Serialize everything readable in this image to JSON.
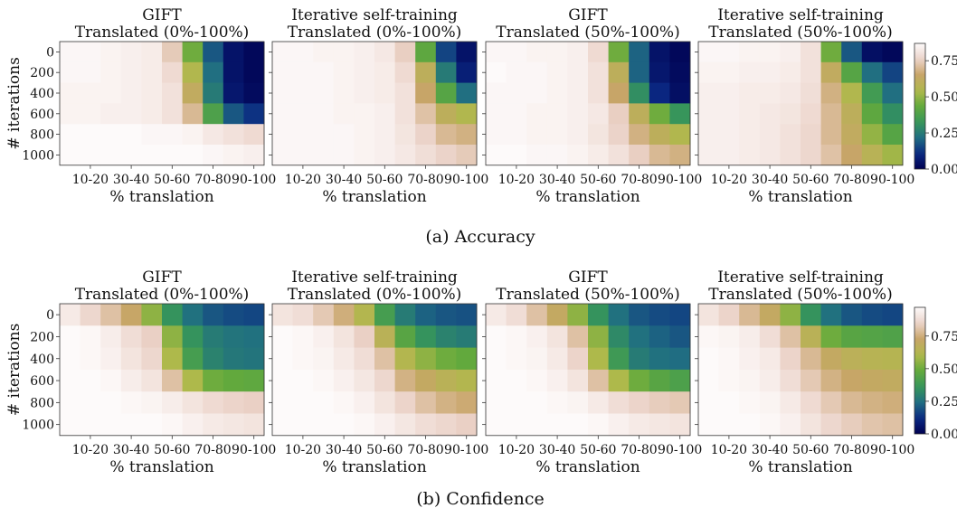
{
  "figure": {
    "rows": [
      {
        "caption": "(a) Accuracy",
        "colorbar_ticks": [
          "0.00",
          "0.25",
          "0.50",
          "0.75"
        ],
        "panels": [
          {
            "title_line1": "GIFT",
            "title_line2": "Translated (0%-100%)"
          },
          {
            "title_line1": "Iterative self-training",
            "title_line2": "Translated (0%-100%)"
          },
          {
            "title_line1": "GIFT",
            "title_line2": "Translated (50%-100%)"
          },
          {
            "title_line1": "Iterative self-training",
            "title_line2": "Translated (50%-100%)"
          }
        ]
      },
      {
        "caption": "(b) Confidence",
        "colorbar_ticks": [
          "0.00",
          "0.25",
          "0.50",
          "0.75"
        ],
        "panels": [
          {
            "title_line1": "GIFT",
            "title_line2": "Translated (0%-100%)"
          },
          {
            "title_line1": "Iterative self-training",
            "title_line2": "Translated (0%-100%)"
          },
          {
            "title_line1": "GIFT",
            "title_line2": "Translated (50%-100%)"
          },
          {
            "title_line1": "Iterative self-training",
            "title_line2": "Translated (50%-100%)"
          }
        ]
      }
    ],
    "xlabel": "% translation",
    "ylabel": "# iterations",
    "x_ticks": [
      "10-20",
      "30-40",
      "50-60",
      "70-80",
      "90-100"
    ],
    "y_ticks": [
      "0",
      "200",
      "400",
      "600",
      "800",
      "1000"
    ]
  },
  "chart_data": [
    {
      "type": "heatmap",
      "title": "GIFT Translated (0%-100%)",
      "xlabel": "% translation",
      "ylabel": "# iterations",
      "y": [
        0,
        200,
        400,
        600,
        800,
        1000
      ],
      "x_tick_labels": [
        "10-20",
        "30-40",
        "50-60",
        "70-80",
        "90-100"
      ],
      "zlim": [
        0,
        0.87
      ],
      "values": [
        [
          0.86,
          0.86,
          0.85,
          0.84,
          0.83,
          0.74,
          0.45,
          0.18,
          0.05,
          0.02
        ],
        [
          0.86,
          0.86,
          0.85,
          0.84,
          0.83,
          0.78,
          0.55,
          0.22,
          0.05,
          0.02
        ],
        [
          0.85,
          0.85,
          0.85,
          0.84,
          0.83,
          0.8,
          0.62,
          0.25,
          0.06,
          0.03
        ],
        [
          0.85,
          0.85,
          0.84,
          0.84,
          0.83,
          0.8,
          0.7,
          0.38,
          0.18,
          0.12
        ],
        [
          0.87,
          0.87,
          0.87,
          0.87,
          0.86,
          0.86,
          0.85,
          0.82,
          0.8,
          0.78
        ],
        [
          0.88,
          0.88,
          0.88,
          0.88,
          0.88,
          0.87,
          0.87,
          0.86,
          0.85,
          0.84
        ]
      ]
    },
    {
      "type": "heatmap",
      "title": "Iterative self-training Translated (0%-100%)",
      "xlabel": "% translation",
      "ylabel": "# iterations",
      "y": [
        0,
        200,
        400,
        600,
        800,
        1000
      ],
      "x_tick_labels": [
        "10-20",
        "30-40",
        "50-60",
        "70-80",
        "90-100"
      ],
      "zlim": [
        0,
        0.87
      ],
      "values": [
        [
          0.86,
          0.86,
          0.85,
          0.85,
          0.84,
          0.82,
          0.75,
          0.42,
          0.15,
          0.05
        ],
        [
          0.86,
          0.86,
          0.86,
          0.85,
          0.84,
          0.83,
          0.78,
          0.6,
          0.25,
          0.08
        ],
        [
          0.86,
          0.86,
          0.86,
          0.85,
          0.84,
          0.83,
          0.8,
          0.65,
          0.4,
          0.22
        ],
        [
          0.86,
          0.86,
          0.86,
          0.85,
          0.85,
          0.84,
          0.8,
          0.72,
          0.6,
          0.55
        ],
        [
          0.86,
          0.86,
          0.86,
          0.86,
          0.85,
          0.84,
          0.81,
          0.76,
          0.7,
          0.68
        ],
        [
          0.86,
          0.86,
          0.86,
          0.86,
          0.85,
          0.84,
          0.82,
          0.79,
          0.76,
          0.74
        ]
      ]
    },
    {
      "type": "heatmap",
      "title": "GIFT Translated (50%-100%)",
      "xlabel": "% translation",
      "ylabel": "# iterations",
      "y": [
        0,
        200,
        400,
        600,
        800,
        1000
      ],
      "x_tick_labels": [
        "10-20",
        "30-40",
        "50-60",
        "70-80",
        "90-100"
      ],
      "zlim": [
        0,
        0.87
      ],
      "values": [
        [
          0.86,
          0.86,
          0.85,
          0.85,
          0.84,
          0.78,
          0.45,
          0.2,
          0.05,
          0.02
        ],
        [
          0.87,
          0.86,
          0.86,
          0.85,
          0.84,
          0.8,
          0.6,
          0.2,
          0.06,
          0.03
        ],
        [
          0.86,
          0.86,
          0.86,
          0.85,
          0.84,
          0.8,
          0.65,
          0.3,
          0.1,
          0.04
        ],
        [
          0.86,
          0.86,
          0.85,
          0.85,
          0.84,
          0.82,
          0.75,
          0.6,
          0.45,
          0.32
        ],
        [
          0.86,
          0.86,
          0.85,
          0.85,
          0.84,
          0.81,
          0.76,
          0.68,
          0.6,
          0.55
        ],
        [
          0.87,
          0.87,
          0.86,
          0.86,
          0.85,
          0.83,
          0.8,
          0.75,
          0.7,
          0.68
        ]
      ]
    },
    {
      "type": "heatmap",
      "title": "Iterative self-training Translated (50%-100%)",
      "xlabel": "% translation",
      "ylabel": "# iterations",
      "y": [
        0,
        200,
        400,
        600,
        800,
        1000
      ],
      "x_tick_labels": [
        "10-20",
        "30-40",
        "50-60",
        "70-80",
        "90-100"
      ],
      "zlim": [
        0,
        0.87
      ],
      "values": [
        [
          0.86,
          0.86,
          0.85,
          0.85,
          0.84,
          0.8,
          0.45,
          0.18,
          0.04,
          0.02
        ],
        [
          0.85,
          0.85,
          0.84,
          0.84,
          0.83,
          0.8,
          0.62,
          0.4,
          0.22,
          0.15
        ],
        [
          0.84,
          0.84,
          0.83,
          0.83,
          0.82,
          0.79,
          0.68,
          0.55,
          0.35,
          0.22
        ],
        [
          0.84,
          0.84,
          0.83,
          0.82,
          0.81,
          0.78,
          0.7,
          0.6,
          0.42,
          0.3
        ],
        [
          0.84,
          0.84,
          0.83,
          0.82,
          0.8,
          0.77,
          0.7,
          0.62,
          0.5,
          0.4
        ],
        [
          0.84,
          0.84,
          0.83,
          0.82,
          0.8,
          0.77,
          0.72,
          0.65,
          0.58,
          0.52
        ]
      ]
    },
    {
      "type": "heatmap",
      "title": "GIFT Translated (0%-100%)",
      "xlabel": "% translation",
      "ylabel": "# iterations",
      "y": [
        0,
        200,
        400,
        600,
        800,
        1000
      ],
      "x_tick_labels": [
        "10-20",
        "30-40",
        "50-60",
        "70-80",
        "90-100"
      ],
      "zlim": [
        0,
        0.97
      ],
      "values": [
        [
          0.92,
          0.86,
          0.8,
          0.72,
          0.55,
          0.35,
          0.25,
          0.2,
          0.18,
          0.17
        ],
        [
          0.97,
          0.96,
          0.93,
          0.88,
          0.84,
          0.55,
          0.35,
          0.28,
          0.26,
          0.25
        ],
        [
          0.97,
          0.96,
          0.94,
          0.9,
          0.86,
          0.6,
          0.4,
          0.3,
          0.27,
          0.26
        ],
        [
          0.98,
          0.97,
          0.96,
          0.93,
          0.9,
          0.8,
          0.6,
          0.5,
          0.48,
          0.47
        ],
        [
          0.98,
          0.98,
          0.97,
          0.96,
          0.95,
          0.93,
          0.9,
          0.87,
          0.85,
          0.84
        ],
        [
          0.99,
          0.99,
          0.98,
          0.98,
          0.97,
          0.96,
          0.94,
          0.92,
          0.91,
          0.9
        ]
      ]
    },
    {
      "type": "heatmap",
      "title": "Iterative self-training Translated (0%-100%)",
      "xlabel": "% translation",
      "ylabel": "# iterations",
      "y": [
        0,
        200,
        400,
        600,
        800,
        1000
      ],
      "x_tick_labels": [
        "10-20",
        "30-40",
        "50-60",
        "70-80",
        "90-100"
      ],
      "zlim": [
        0,
        0.97
      ],
      "values": [
        [
          0.9,
          0.88,
          0.82,
          0.75,
          0.62,
          0.4,
          0.28,
          0.22,
          0.2,
          0.19
        ],
        [
          0.97,
          0.96,
          0.94,
          0.9,
          0.84,
          0.65,
          0.45,
          0.35,
          0.3,
          0.28
        ],
        [
          0.97,
          0.96,
          0.95,
          0.92,
          0.88,
          0.8,
          0.62,
          0.55,
          0.5,
          0.48
        ],
        [
          0.98,
          0.97,
          0.96,
          0.94,
          0.91,
          0.86,
          0.76,
          0.7,
          0.65,
          0.62
        ],
        [
          0.98,
          0.98,
          0.97,
          0.96,
          0.94,
          0.9,
          0.85,
          0.8,
          0.76,
          0.74
        ],
        [
          0.99,
          0.98,
          0.98,
          0.97,
          0.96,
          0.94,
          0.91,
          0.88,
          0.86,
          0.84
        ]
      ]
    },
    {
      "type": "heatmap",
      "title": "GIFT Translated (50%-100%)",
      "xlabel": "% translation",
      "ylabel": "# iterations",
      "y": [
        0,
        200,
        400,
        600,
        800,
        1000
      ],
      "x_tick_labels": [
        "10-20",
        "30-40",
        "50-60",
        "70-80",
        "90-100"
      ],
      "zlim": [
        0,
        0.97
      ],
      "values": [
        [
          0.92,
          0.88,
          0.8,
          0.7,
          0.55,
          0.35,
          0.25,
          0.2,
          0.18,
          0.17
        ],
        [
          0.97,
          0.96,
          0.94,
          0.9,
          0.8,
          0.55,
          0.32,
          0.25,
          0.22,
          0.2
        ],
        [
          0.97,
          0.96,
          0.95,
          0.92,
          0.85,
          0.6,
          0.38,
          0.28,
          0.25,
          0.24
        ],
        [
          0.98,
          0.97,
          0.96,
          0.94,
          0.9,
          0.8,
          0.6,
          0.5,
          0.45,
          0.42
        ],
        [
          0.98,
          0.98,
          0.97,
          0.96,
          0.95,
          0.92,
          0.88,
          0.85,
          0.83,
          0.82
        ],
        [
          0.99,
          0.99,
          0.98,
          0.98,
          0.97,
          0.96,
          0.94,
          0.92,
          0.91,
          0.9
        ]
      ]
    },
    {
      "type": "heatmap",
      "title": "Iterative self-training Translated (50%-100%)",
      "xlabel": "% translation",
      "ylabel": "# iterations",
      "y": [
        0,
        200,
        400,
        600,
        800,
        1000
      ],
      "x_tick_labels": [
        "10-20",
        "30-40",
        "50-60",
        "70-80",
        "90-100"
      ],
      "zlim": [
        0,
        0.97
      ],
      "values": [
        [
          0.9,
          0.85,
          0.78,
          0.7,
          0.55,
          0.35,
          0.25,
          0.2,
          0.18,
          0.17
        ],
        [
          0.96,
          0.95,
          0.93,
          0.88,
          0.8,
          0.65,
          0.5,
          0.45,
          0.44,
          0.43
        ],
        [
          0.97,
          0.96,
          0.94,
          0.92,
          0.85,
          0.78,
          0.7,
          0.66,
          0.64,
          0.63
        ],
        [
          0.97,
          0.96,
          0.95,
          0.93,
          0.88,
          0.82,
          0.76,
          0.72,
          0.7,
          0.69
        ],
        [
          0.98,
          0.97,
          0.96,
          0.95,
          0.92,
          0.87,
          0.82,
          0.78,
          0.76,
          0.75
        ],
        [
          0.98,
          0.98,
          0.97,
          0.96,
          0.94,
          0.9,
          0.86,
          0.83,
          0.81,
          0.8
        ]
      ]
    }
  ]
}
